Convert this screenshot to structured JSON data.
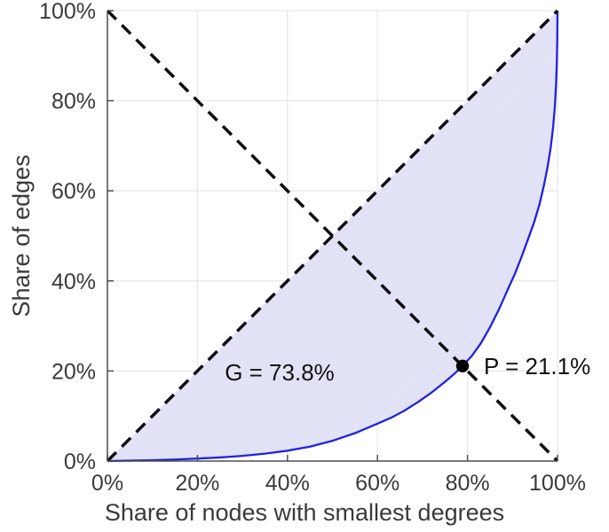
{
  "chart_data": {
    "type": "line",
    "title": "",
    "xlabel": "Share of nodes with smallest degrees",
    "ylabel": "Share of edges",
    "xlim": [
      0,
      100
    ],
    "ylim": [
      0,
      100
    ],
    "grid": true,
    "x_tick_labels": [
      "0%",
      "20%",
      "40%",
      "60%",
      "80%",
      "100%"
    ],
    "y_tick_labels": [
      "0%",
      "20%",
      "40%",
      "60%",
      "80%",
      "100%"
    ],
    "x_tick_values": [
      0,
      20,
      40,
      60,
      80,
      100
    ],
    "y_tick_values": [
      0,
      20,
      40,
      60,
      80,
      100
    ],
    "series": [
      {
        "name": "lorenz-curve",
        "type": "line",
        "style": "solid",
        "color": "#2121e0",
        "width": 2.3,
        "points": [
          [
            0,
            0
          ],
          [
            5,
            0.1
          ],
          [
            10,
            0.2
          ],
          [
            15,
            0.35
          ],
          [
            20,
            0.55
          ],
          [
            25,
            0.8
          ],
          [
            30,
            1.15
          ],
          [
            35,
            1.65
          ],
          [
            40,
            2.3
          ],
          [
            45,
            3.2
          ],
          [
            50,
            4.5
          ],
          [
            55,
            6.2
          ],
          [
            60,
            8.3
          ],
          [
            63,
            9.6
          ],
          [
            66,
            11.2
          ],
          [
            69,
            13.1
          ],
          [
            72,
            15.2
          ],
          [
            75,
            17.6
          ],
          [
            77,
            19.3
          ],
          [
            78.9,
            21.1
          ],
          [
            81,
            23.4
          ],
          [
            83,
            26.2
          ],
          [
            85,
            29.7
          ],
          [
            87,
            33.7
          ],
          [
            89,
            38.2
          ],
          [
            90.5,
            41.5
          ],
          [
            92,
            45.3
          ],
          [
            93.5,
            49.4
          ],
          [
            94.8,
            53
          ],
          [
            96,
            57
          ],
          [
            97,
            61.3
          ],
          [
            97.8,
            65.3
          ],
          [
            98.5,
            69.7
          ],
          [
            99,
            73.9
          ],
          [
            99.4,
            78.5
          ],
          [
            99.7,
            84
          ],
          [
            99.85,
            88.5
          ],
          [
            99.95,
            93.5
          ],
          [
            100,
            100
          ]
        ]
      },
      {
        "name": "equality-diagonal",
        "type": "line",
        "style": "dashed",
        "color": "#0d0d0d",
        "width": 3.5,
        "points": [
          [
            0,
            0
          ],
          [
            100,
            100
          ]
        ]
      },
      {
        "name": "anti-diagonal",
        "type": "line",
        "style": "dashed",
        "color": "#0d0d0d",
        "width": 3.5,
        "points": [
          [
            0,
            100
          ],
          [
            100,
            0
          ]
        ]
      }
    ],
    "shaded_area": {
      "between": [
        "equality-diagonal",
        "lorenz-curve"
      ],
      "color": "#e2e2f6"
    },
    "marker": {
      "x": 78.9,
      "y": 21.1,
      "color": "#000000",
      "radius": 7.2
    },
    "annotations": [
      {
        "text": "G = 73.8%",
        "x": 37.9,
        "y": 19.7,
        "align": "center"
      },
      {
        "text": "P = 21.1%",
        "x": 83.3,
        "y": 21.1,
        "align": "left"
      }
    ],
    "gini_coefficient_label": "G = 73.8%",
    "intersection_point_label": "P = 21.1%",
    "colors": {
      "grid": "#e8e8e8",
      "axis": "#4d4d4d",
      "background": "#ffffff"
    }
  }
}
